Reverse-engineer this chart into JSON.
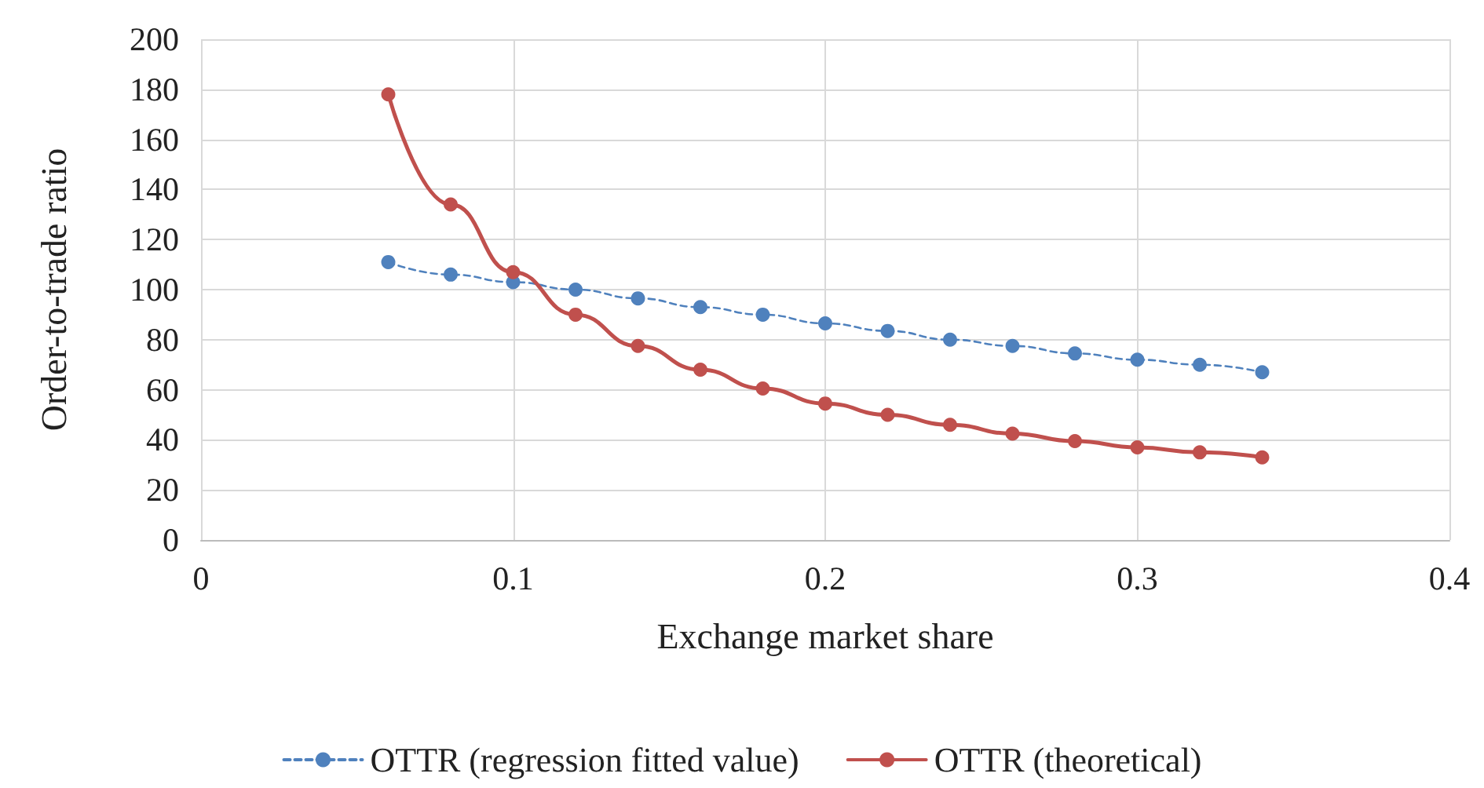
{
  "chart_data": {
    "type": "line",
    "xlabel": "Exchange market share",
    "ylabel": "Order-to-trade ratio",
    "x": [
      0.06,
      0.08,
      0.1,
      0.12,
      0.14,
      0.16,
      0.18,
      0.2,
      0.22,
      0.24,
      0.26,
      0.28,
      0.3,
      0.32,
      0.34
    ],
    "series": [
      {
        "name": "OTTR (regression fitted value)",
        "color": "#4f81bd",
        "line_style": "dashed",
        "values": [
          111,
          106,
          103,
          100,
          96.5,
          93,
          90,
          86.5,
          83.5,
          80,
          77.5,
          74.5,
          72,
          70,
          67
        ]
      },
      {
        "name": "OTTR (theoretical)",
        "color": "#c0504d",
        "line_style": "solid",
        "values": [
          178,
          134,
          107,
          90,
          77.5,
          68,
          60.5,
          54.5,
          50,
          46,
          42.5,
          39.5,
          37,
          35,
          33
        ]
      }
    ],
    "xlim": [
      0,
      0.4
    ],
    "xticks": [
      0,
      0.1,
      0.2,
      0.3,
      0.4
    ],
    "ylim": [
      0,
      200
    ],
    "yticks": [
      0,
      20,
      40,
      60,
      80,
      100,
      120,
      140,
      160,
      180,
      200
    ],
    "grid": true,
    "legend": "bottom",
    "marker": "circle"
  }
}
